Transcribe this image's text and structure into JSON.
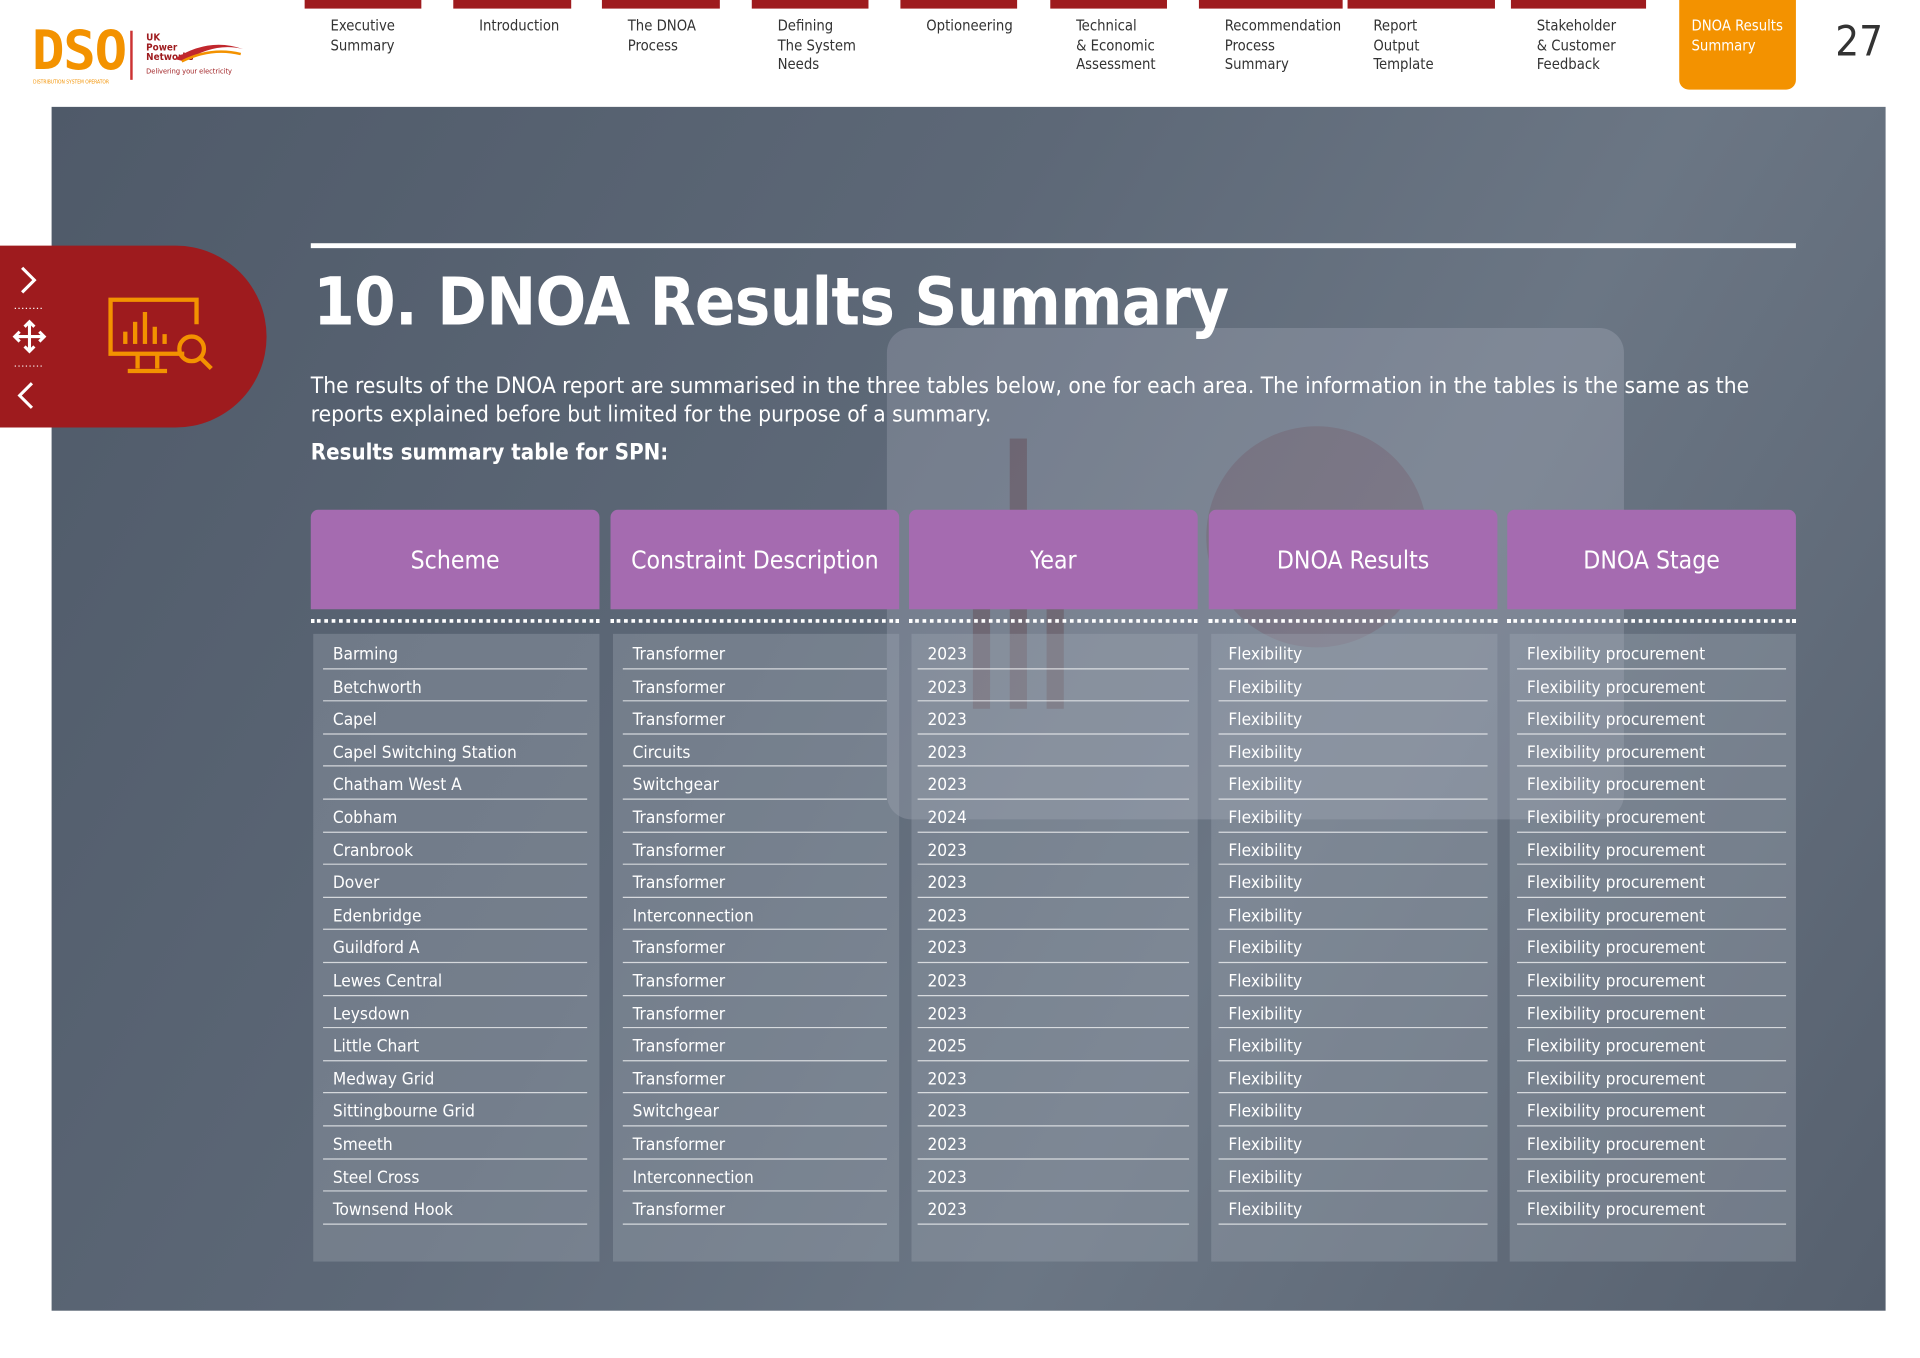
{
  "logo": {
    "mark": "DSO",
    "subtitle": "DISTRIBUTION SYSTEM OPERATOR",
    "company": "UK\nPower\nNetworks",
    "tagline": "Delivering your electricity"
  },
  "nav": [
    "Executive\nSummary",
    "Introduction",
    "The DNOA\nProcess",
    "Defining\nThe System\nNeeds",
    "Optioneering",
    "Technical\n& Economic\nAssessment",
    "Recommendation\nProcess Summary",
    "Report\nOutput\nTemplate",
    "Stakeholder\n& Customer\nFeedback",
    "DNOA Results\nSummary"
  ],
  "page_number": "27",
  "title": "10. DNOA Results Summary",
  "intro": "The results of the DNOA report are summarised in the three tables below, one for each area. The information in the tables is the same as the reports explained before but limited for the purpose of a summary.",
  "subtitle": "Results summary table for SPN:",
  "table": {
    "headers": [
      "Scheme",
      "Constraint Description",
      "Year",
      "DNOA Results",
      "DNOA Stage"
    ],
    "rows": [
      [
        "Barming",
        "Transformer",
        "2023",
        "Flexibility",
        "Flexibility procurement"
      ],
      [
        "Betchworth",
        "Transformer",
        "2023",
        "Flexibility",
        "Flexibility procurement"
      ],
      [
        "Capel",
        "Transformer",
        "2023",
        "Flexibility",
        "Flexibility procurement"
      ],
      [
        "Capel Switching Station",
        "Circuits",
        "2023",
        "Flexibility",
        "Flexibility procurement"
      ],
      [
        "Chatham West A",
        "Switchgear",
        "2023",
        "Flexibility",
        "Flexibility procurement"
      ],
      [
        "Cobham",
        "Transformer",
        "2024",
        "Flexibility",
        "Flexibility procurement"
      ],
      [
        "Cranbrook",
        "Transformer",
        "2023",
        "Flexibility",
        "Flexibility procurement"
      ],
      [
        "Dover",
        "Transformer",
        "2023",
        "Flexibility",
        "Flexibility procurement"
      ],
      [
        "Edenbridge",
        "Interconnection",
        "2023",
        "Flexibility",
        "Flexibility procurement"
      ],
      [
        "Guildford A",
        "Transformer",
        "2023",
        "Flexibility",
        "Flexibility procurement"
      ],
      [
        "Lewes Central",
        "Transformer",
        "2023",
        "Flexibility",
        "Flexibility procurement"
      ],
      [
        "Leysdown",
        "Transformer",
        "2023",
        "Flexibility",
        "Flexibility procurement"
      ],
      [
        "Little Chart",
        "Transformer",
        "2025",
        "Flexibility",
        "Flexibility procurement"
      ],
      [
        "Medway Grid",
        "Transformer",
        "2023",
        "Flexibility",
        "Flexibility procurement"
      ],
      [
        "Sittingbourne Grid",
        "Switchgear",
        "2023",
        "Flexibility",
        "Flexibility procurement"
      ],
      [
        "Smeeth",
        "Transformer",
        "2023",
        "Flexibility",
        "Flexibility procurement"
      ],
      [
        "Steel Cross",
        "Interconnection",
        "2023",
        "Flexibility",
        "Flexibility procurement"
      ],
      [
        "Townsend Hook",
        "Transformer",
        "2023",
        "Flexibility",
        "Flexibility procurement"
      ]
    ]
  }
}
